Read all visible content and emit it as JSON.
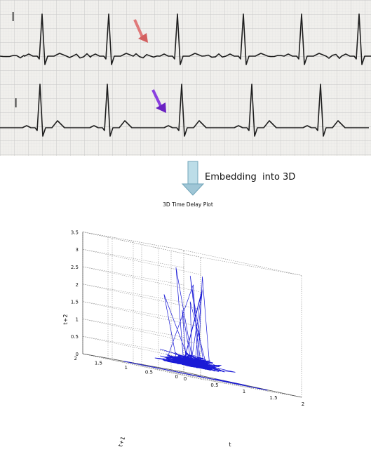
{
  "ecg": {
    "lead_top_label": "I",
    "lead_bottom_label": "I",
    "colors": {
      "paper": "#f0efec",
      "grid_major": "#c9c9c9",
      "grid_minor": "#e1e1e1",
      "trace": "#1f1f1f",
      "arrow_top": "#e07a7a",
      "arrow_bottom": "#7a2fd0"
    }
  },
  "transition": {
    "caption": "Embedding  into 3D",
    "arrow_color": "#9fc6d6"
  },
  "plot": {
    "title": "3D Time Delay Plot",
    "z_label": "t+2",
    "y_label": "t+1",
    "x_label": "t",
    "z_ticks": [
      "0",
      "0.5",
      "1",
      "1.5",
      "2",
      "2.5",
      "3",
      "3.5"
    ],
    "y_ticks": [
      "0",
      "0.5",
      "1",
      "1.5",
      "2"
    ],
    "x_ticks": [
      "0",
      "0.5",
      "1",
      "1.5",
      "2"
    ],
    "line_color": "#1a1ad6",
    "axis_color": "#555555"
  }
}
